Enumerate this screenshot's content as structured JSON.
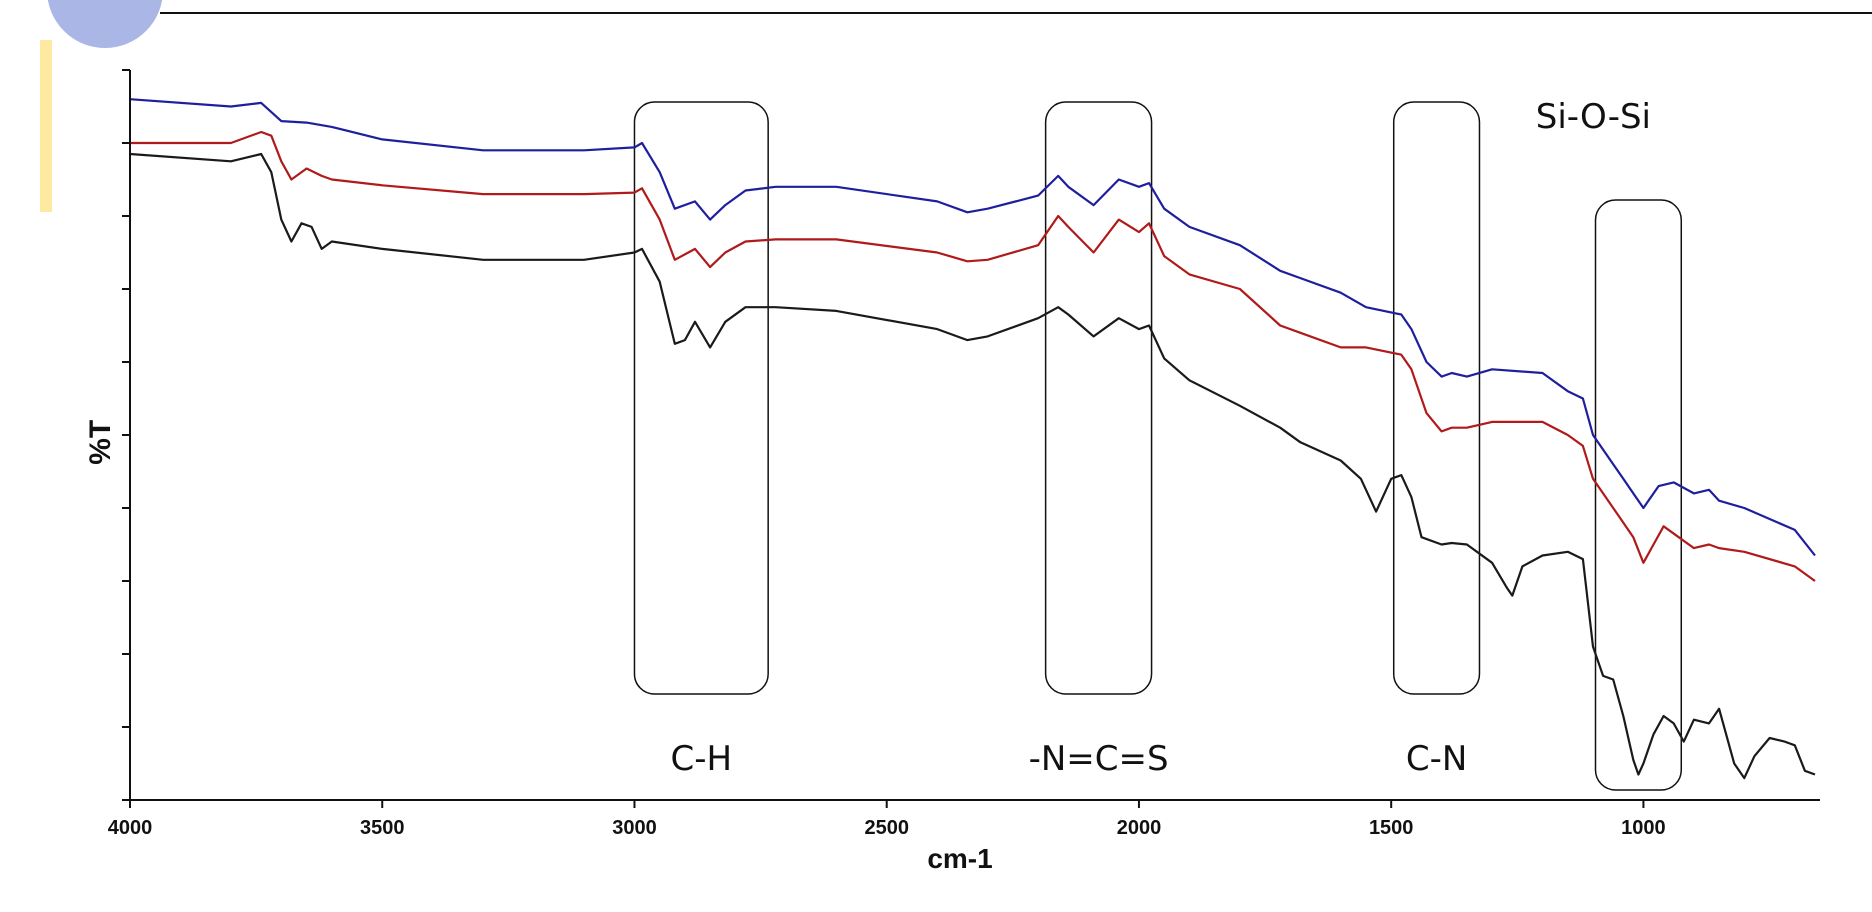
{
  "chart_data": {
    "type": "line",
    "title": "",
    "xlabel": "cm-1",
    "ylabel": "%T",
    "xlim": [
      4000,
      650
    ],
    "xlim_note": "x axis reversed: 4000 at left, decreasing to the right",
    "ylim": [
      0,
      100
    ],
    "x_ticks": [
      4000,
      3500,
      3000,
      2500,
      2000,
      1500,
      1000
    ],
    "x_tick_labels": [
      "4000",
      "3500",
      "3000",
      "2500",
      "2000",
      "1500",
      "1000"
    ],
    "y_ticks": [
      0,
      10,
      20,
      30,
      40,
      50,
      60,
      70,
      80,
      90,
      100
    ],
    "grid": false,
    "legend": "none",
    "series": [
      {
        "color": "#1f1f9e",
        "points": [
          [
            4000,
            96
          ],
          [
            3800,
            95
          ],
          [
            3740,
            95.5
          ],
          [
            3700,
            93
          ],
          [
            3650,
            92.8
          ],
          [
            3600,
            92.2
          ],
          [
            3500,
            90.5
          ],
          [
            3300,
            89
          ],
          [
            3100,
            89
          ],
          [
            3000,
            89.4
          ],
          [
            2985,
            90
          ],
          [
            2950,
            86
          ],
          [
            2920,
            81
          ],
          [
            2880,
            82
          ],
          [
            2850,
            79.5
          ],
          [
            2820,
            81.5
          ],
          [
            2780,
            83.5
          ],
          [
            2720,
            84
          ],
          [
            2600,
            84
          ],
          [
            2400,
            82
          ],
          [
            2340,
            80.5
          ],
          [
            2300,
            81
          ],
          [
            2200,
            82.8
          ],
          [
            2160,
            85.5
          ],
          [
            2140,
            84
          ],
          [
            2090,
            81.5
          ],
          [
            2040,
            85
          ],
          [
            2000,
            84
          ],
          [
            1980,
            84.5
          ],
          [
            1950,
            81
          ],
          [
            1900,
            78.5
          ],
          [
            1800,
            76
          ],
          [
            1720,
            72.5
          ],
          [
            1680,
            71.5
          ],
          [
            1600,
            69.5
          ],
          [
            1550,
            67.5
          ],
          [
            1480,
            66.5
          ],
          [
            1460,
            64.5
          ],
          [
            1430,
            60
          ],
          [
            1400,
            58
          ],
          [
            1380,
            58.5
          ],
          [
            1350,
            58
          ],
          [
            1300,
            59
          ],
          [
            1200,
            58.5
          ],
          [
            1150,
            56
          ],
          [
            1120,
            55
          ],
          [
            1100,
            50
          ],
          [
            1060,
            46
          ],
          [
            1040,
            44
          ],
          [
            1020,
            42
          ],
          [
            1000,
            40
          ],
          [
            970,
            43
          ],
          [
            940,
            43.5
          ],
          [
            900,
            42
          ],
          [
            870,
            42.5
          ],
          [
            850,
            41
          ],
          [
            800,
            40
          ],
          [
            700,
            37
          ],
          [
            660,
            33.5
          ]
        ]
      },
      {
        "color": "#b01a1a",
        "points": [
          [
            4000,
            90
          ],
          [
            3800,
            90
          ],
          [
            3740,
            91.5
          ],
          [
            3720,
            91
          ],
          [
            3700,
            87.5
          ],
          [
            3680,
            85
          ],
          [
            3650,
            86.5
          ],
          [
            3620,
            85.5
          ],
          [
            3600,
            85
          ],
          [
            3500,
            84.2
          ],
          [
            3300,
            83
          ],
          [
            3100,
            83
          ],
          [
            3000,
            83.2
          ],
          [
            2985,
            83.8
          ],
          [
            2950,
            79.5
          ],
          [
            2920,
            74
          ],
          [
            2880,
            75.5
          ],
          [
            2850,
            73
          ],
          [
            2820,
            75
          ],
          [
            2780,
            76.5
          ],
          [
            2720,
            76.8
          ],
          [
            2600,
            76.8
          ],
          [
            2400,
            75
          ],
          [
            2340,
            73.8
          ],
          [
            2300,
            74
          ],
          [
            2200,
            76
          ],
          [
            2160,
            80
          ],
          [
            2140,
            78.5
          ],
          [
            2090,
            75
          ],
          [
            2040,
            79.5
          ],
          [
            2000,
            77.8
          ],
          [
            1980,
            79
          ],
          [
            1950,
            74.5
          ],
          [
            1900,
            72
          ],
          [
            1800,
            70
          ],
          [
            1720,
            65
          ],
          [
            1680,
            64
          ],
          [
            1600,
            62
          ],
          [
            1550,
            62
          ],
          [
            1480,
            61
          ],
          [
            1460,
            59
          ],
          [
            1430,
            53
          ],
          [
            1400,
            50.5
          ],
          [
            1380,
            51
          ],
          [
            1350,
            51
          ],
          [
            1300,
            51.8
          ],
          [
            1200,
            51.8
          ],
          [
            1150,
            50
          ],
          [
            1120,
            48.5
          ],
          [
            1100,
            44
          ],
          [
            1060,
            40
          ],
          [
            1040,
            38
          ],
          [
            1020,
            36
          ],
          [
            1000,
            32.5
          ],
          [
            980,
            35
          ],
          [
            960,
            37.5
          ],
          [
            930,
            36
          ],
          [
            900,
            34.5
          ],
          [
            870,
            35
          ],
          [
            850,
            34.5
          ],
          [
            800,
            34
          ],
          [
            700,
            32
          ],
          [
            660,
            30
          ]
        ]
      },
      {
        "color": "#1a1a1a",
        "points": [
          [
            4000,
            88.5
          ],
          [
            3800,
            87.5
          ],
          [
            3740,
            88.5
          ],
          [
            3720,
            86
          ],
          [
            3700,
            79.5
          ],
          [
            3680,
            76.5
          ],
          [
            3660,
            79
          ],
          [
            3640,
            78.5
          ],
          [
            3620,
            75.5
          ],
          [
            3600,
            76.5
          ],
          [
            3500,
            75.5
          ],
          [
            3300,
            74
          ],
          [
            3100,
            74
          ],
          [
            3000,
            75
          ],
          [
            2985,
            75.5
          ],
          [
            2950,
            71
          ],
          [
            2920,
            62.5
          ],
          [
            2900,
            63
          ],
          [
            2880,
            65.5
          ],
          [
            2850,
            62
          ],
          [
            2820,
            65.5
          ],
          [
            2780,
            67.5
          ],
          [
            2720,
            67.5
          ],
          [
            2600,
            67
          ],
          [
            2400,
            64.5
          ],
          [
            2340,
            63
          ],
          [
            2300,
            63.5
          ],
          [
            2200,
            66
          ],
          [
            2160,
            67.5
          ],
          [
            2140,
            66.5
          ],
          [
            2090,
            63.5
          ],
          [
            2040,
            66
          ],
          [
            2000,
            64.5
          ],
          [
            1980,
            65
          ],
          [
            1950,
            60.5
          ],
          [
            1900,
            57.5
          ],
          [
            1800,
            54
          ],
          [
            1720,
            51
          ],
          [
            1680,
            49
          ],
          [
            1600,
            46.5
          ],
          [
            1560,
            44
          ],
          [
            1530,
            39.5
          ],
          [
            1500,
            44
          ],
          [
            1480,
            44.5
          ],
          [
            1460,
            41.5
          ],
          [
            1440,
            36
          ],
          [
            1400,
            35
          ],
          [
            1380,
            35.2
          ],
          [
            1350,
            35
          ],
          [
            1300,
            32.5
          ],
          [
            1270,
            29
          ],
          [
            1260,
            28
          ],
          [
            1240,
            32
          ],
          [
            1200,
            33.5
          ],
          [
            1150,
            34
          ],
          [
            1120,
            33
          ],
          [
            1100,
            21
          ],
          [
            1080,
            17
          ],
          [
            1060,
            16.5
          ],
          [
            1040,
            11.5
          ],
          [
            1020,
            5.5
          ],
          [
            1010,
            3.5
          ],
          [
            1000,
            5
          ],
          [
            980,
            9
          ],
          [
            960,
            11.5
          ],
          [
            940,
            10.5
          ],
          [
            920,
            8
          ],
          [
            900,
            11
          ],
          [
            870,
            10.5
          ],
          [
            850,
            12.5
          ],
          [
            820,
            5
          ],
          [
            800,
            3
          ],
          [
            780,
            6
          ],
          [
            750,
            8.5
          ],
          [
            720,
            8
          ],
          [
            700,
            7.5
          ],
          [
            680,
            4
          ],
          [
            660,
            3.5
          ]
        ]
      }
    ],
    "annotations": [
      {
        "label": "C-H",
        "x_range": [
          3000,
          2735
        ]
      },
      {
        "label": "-N=C=S",
        "x_range": [
          2185,
          1975
        ]
      },
      {
        "label": "C-N",
        "x_range": [
          1495,
          1325
        ]
      },
      {
        "label": "Si-O-Si",
        "x_range": [
          1095,
          925
        ]
      }
    ]
  }
}
